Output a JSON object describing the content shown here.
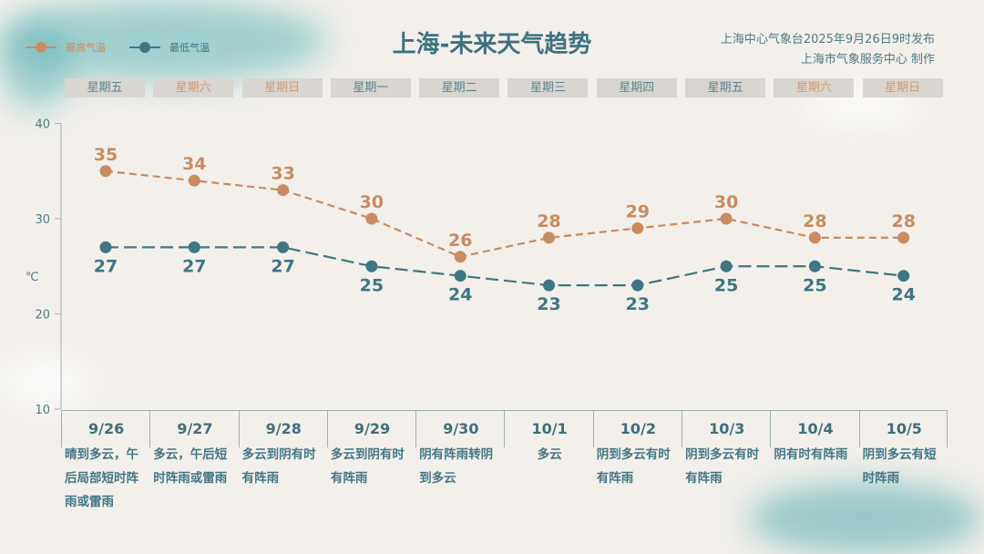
{
  "header": {
    "title": "上海-未来天气趋势",
    "publish_line": "上海中心气象台2025年9月26日9时发布",
    "producer_line": "上海市气象服务中心 制作"
  },
  "colors": {
    "high": "#c98b60",
    "low": "#3f7683",
    "weekday_default": "#5a8690",
    "weekday_weekend": "#d29a72"
  },
  "chart_data": {
    "type": "line",
    "title": "上海-未来天气趋势",
    "ylabel": "℃",
    "ylim": [
      10,
      40
    ],
    "yticks": [
      10,
      20,
      30,
      40
    ],
    "grid": false,
    "legend_placement": "top-left",
    "categories": [
      "9/26",
      "9/27",
      "9/28",
      "9/29",
      "9/30",
      "10/1",
      "10/2",
      "10/3",
      "10/4",
      "10/5"
    ],
    "series": [
      {
        "name": "最高气温",
        "color": "#c98b60",
        "values": [
          35,
          34,
          33,
          30,
          26,
          28,
          29,
          30,
          28,
          28
        ]
      },
      {
        "name": "最低气温",
        "color": "#3f7683",
        "values": [
          27,
          27,
          27,
          25,
          24,
          23,
          23,
          25,
          25,
          24
        ]
      }
    ]
  },
  "weekdays": [
    {
      "label": "星期五",
      "weekend": false
    },
    {
      "label": "星期六",
      "weekend": true
    },
    {
      "label": "星期日",
      "weekend": true
    },
    {
      "label": "星期一",
      "weekend": false
    },
    {
      "label": "星期二",
      "weekend": false
    },
    {
      "label": "星期三",
      "weekend": false
    },
    {
      "label": "星期四",
      "weekend": false
    },
    {
      "label": "星期五",
      "weekend": false
    },
    {
      "label": "星期六",
      "weekend": true
    },
    {
      "label": "星期日",
      "weekend": true
    }
  ],
  "days": [
    {
      "date": "9/26",
      "desc": "晴到多云，午后局部短时阵雨或雷雨"
    },
    {
      "date": "9/27",
      "desc": "多云，午后短时阵雨或雷雨"
    },
    {
      "date": "9/28",
      "desc": "多云到阴有时有阵雨"
    },
    {
      "date": "9/29",
      "desc": "多云到阴有时有阵雨"
    },
    {
      "date": "9/30",
      "desc": "阴有阵雨转阴到多云"
    },
    {
      "date": "10/1",
      "desc": "多云"
    },
    {
      "date": "10/2",
      "desc": "阴到多云有时有阵雨"
    },
    {
      "date": "10/3",
      "desc": "阴到多云有时有阵雨"
    },
    {
      "date": "10/4",
      "desc": "阴有时有阵雨"
    },
    {
      "date": "10/5",
      "desc": "阴到多云有短时阵雨"
    }
  ]
}
